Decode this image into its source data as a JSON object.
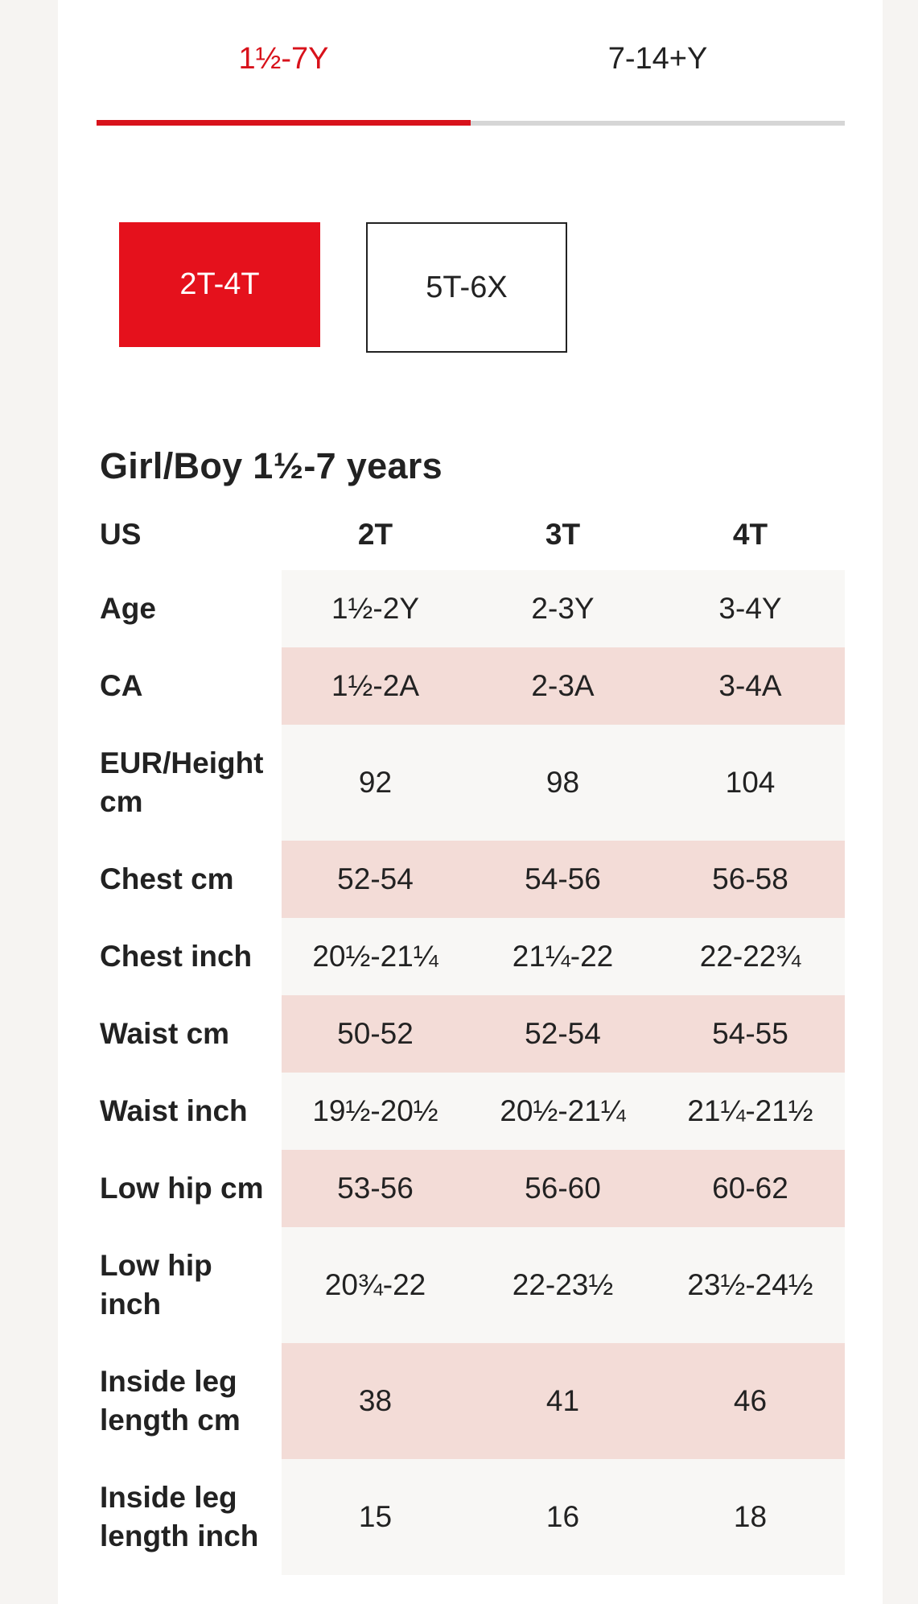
{
  "tabs": [
    {
      "label": "1½-7Y",
      "active": true
    },
    {
      "label": "7-14+Y",
      "active": false
    }
  ],
  "size_ranges": {
    "selected": "2T-4T",
    "other": "5T-6X"
  },
  "colors": {
    "accent": "#d8121b",
    "row_pink": "#f3dcd7",
    "row_light": "#f8f7f5"
  },
  "chart": {
    "title": "Girl/Boy 1½-7 years",
    "header": {
      "label": "US",
      "cols": [
        "2T",
        "3T",
        "4T"
      ]
    },
    "rows": [
      {
        "label": "Age",
        "values": [
          "1½-2Y",
          "2-3Y",
          "3-4Y"
        ]
      },
      {
        "label": "CA",
        "values": [
          "1½-2A",
          "2-3A",
          "3-4A"
        ]
      },
      {
        "label": "EUR/Height cm",
        "values": [
          "92",
          "98",
          "104"
        ]
      },
      {
        "label": "Chest cm",
        "values": [
          "52-54",
          "54-56",
          "56-58"
        ]
      },
      {
        "label": "Chest inch",
        "values": [
          "20½-21¼",
          "21¼-22",
          "22-22¾"
        ]
      },
      {
        "label": "Waist cm",
        "values": [
          "50-52",
          "52-54",
          "54-55"
        ]
      },
      {
        "label": "Waist inch",
        "values": [
          "19½-20½",
          "20½-21¼",
          "21¼-21½"
        ]
      },
      {
        "label": "Low hip cm",
        "values": [
          "53-56",
          "56-60",
          "60-62"
        ]
      },
      {
        "label": "Low hip inch",
        "values": [
          "20¾-22",
          "22-23½",
          "23½-24½"
        ]
      },
      {
        "label": "Inside leg length cm",
        "values": [
          "38",
          "41",
          "46"
        ]
      },
      {
        "label": "Inside leg length inch",
        "values": [
          "15",
          "16",
          "18"
        ]
      }
    ]
  }
}
